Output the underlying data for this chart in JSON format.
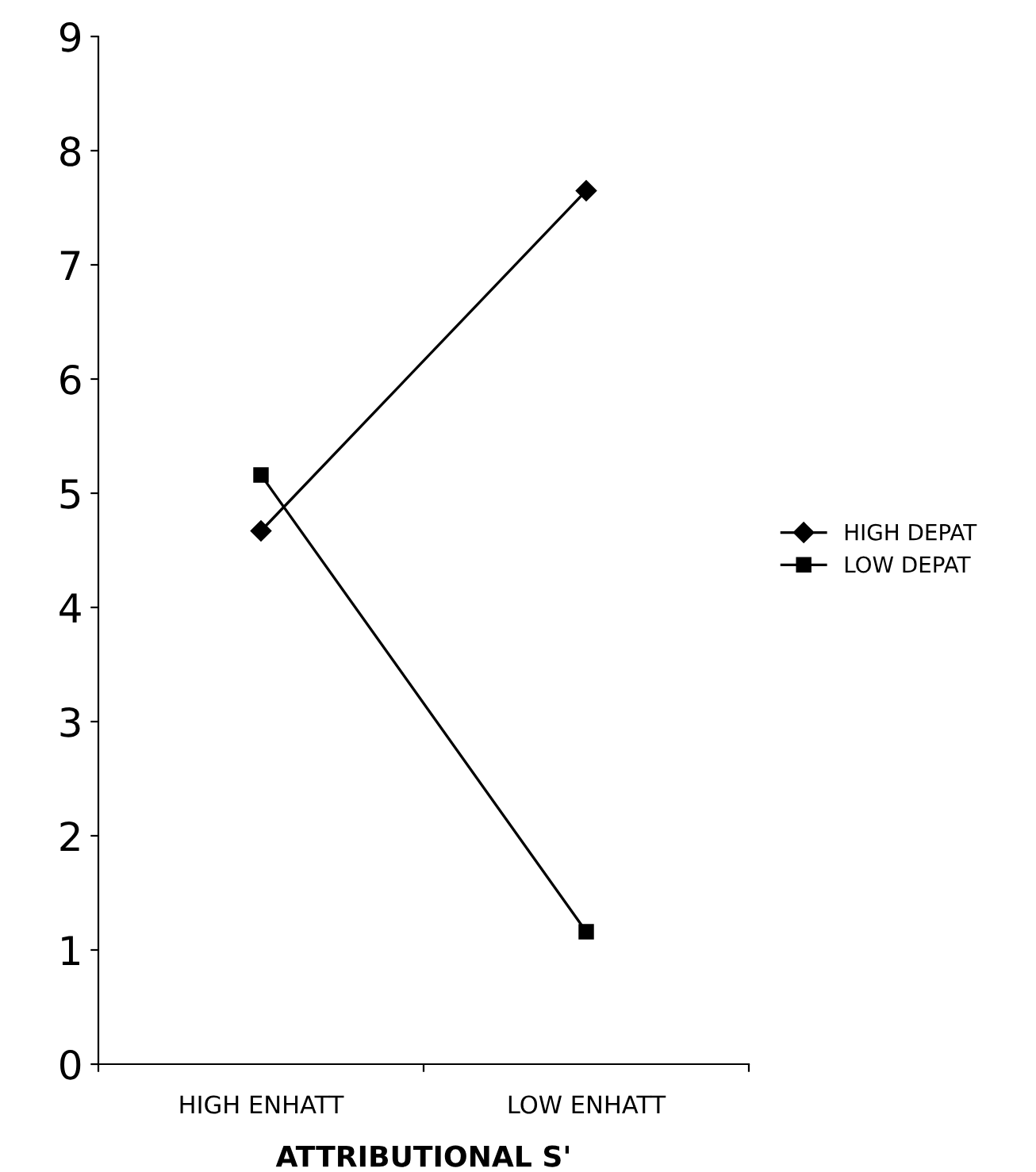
{
  "chart_data": {
    "type": "line",
    "xlabel": "ATTRIBUTIONAL S'",
    "categories": [
      "HIGH ENHATT",
      "LOW ENHATT"
    ],
    "series": [
      {
        "name": "HIGH DEPAT",
        "color": "#000000",
        "marker": "diamond",
        "values": [
          4.67,
          7.65
        ]
      },
      {
        "name": "LOW DEPAT",
        "color": "#000000",
        "marker": "square",
        "values": [
          5.16,
          1.16
        ]
      }
    ],
    "ylim": [
      0,
      9
    ],
    "yticks": [
      0,
      1,
      2,
      3,
      4,
      5,
      6,
      7,
      8,
      9
    ],
    "grid": false,
    "legend": "right",
    "line_style": "solid"
  }
}
